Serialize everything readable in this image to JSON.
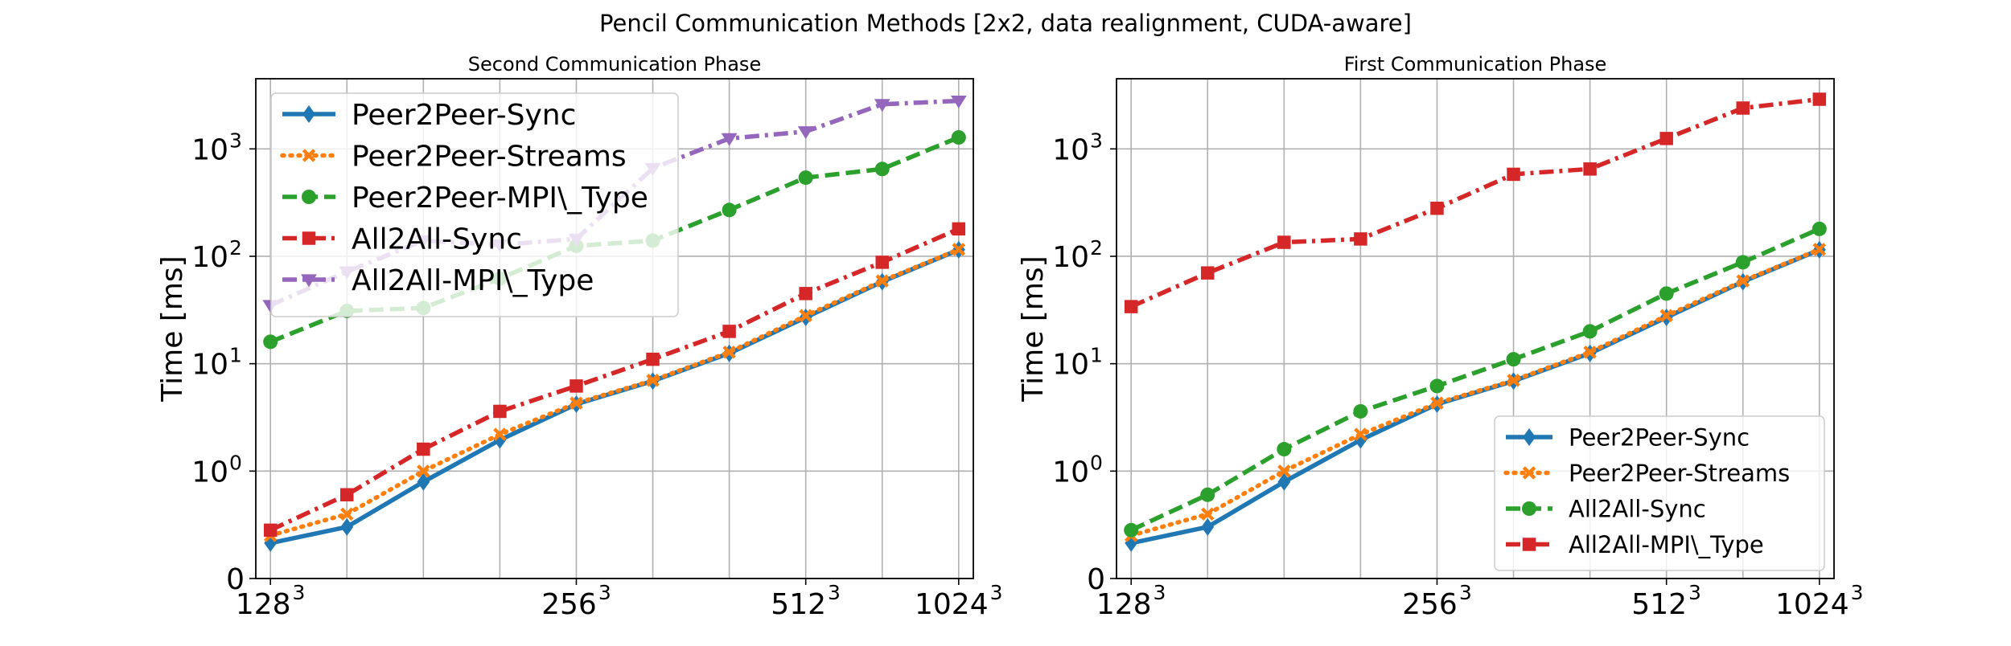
{
  "figure": {
    "title": "Pencil Communication Methods [2x2, data realignment, CUDA-aware]"
  },
  "chart_data": [
    {
      "type": "line",
      "title": "Second Communication Phase",
      "xlabel": "",
      "ylabel": "Time [ms]",
      "yscale": "symlog",
      "ylim": [
        0,
        4500
      ],
      "grid": true,
      "legend_position": "top-left",
      "x": [
        128,
        256,
        384,
        512,
        640,
        768,
        896,
        1024,
        1152,
        1280
      ],
      "x_tick_values": [
        128,
        640,
        1024,
        1280
      ],
      "x_tick_labels": [
        "128",
        "256",
        "512",
        "1024"
      ],
      "x_tick_exponent": "3",
      "y_ticks": [
        {
          "value": 0,
          "label": "0",
          "exp": ""
        },
        {
          "value": 1,
          "label": "10",
          "exp": "0"
        },
        {
          "value": 10,
          "label": "10",
          "exp": "1"
        },
        {
          "value": 100,
          "label": "10",
          "exp": "2"
        },
        {
          "value": 1000,
          "label": "10",
          "exp": "3"
        }
      ],
      "series": [
        {
          "name": "Peer2Peer-Sync",
          "color": "#1f77b4",
          "dash": "solid",
          "marker": "diamond",
          "values": [
            0.33,
            0.48,
            0.9,
            1.95,
            4.2,
            6.9,
            12.5,
            27,
            58,
            115
          ]
        },
        {
          "name": "Peer2Peer-Streams",
          "color": "#ff7f0e",
          "dash": "dotted",
          "marker": "x",
          "values": [
            0.4,
            0.6,
            1.0,
            2.2,
            4.3,
            7.0,
            12.8,
            28,
            59,
            116
          ]
        },
        {
          "name": "Peer2Peer-MPI\\_Type",
          "color": "#2ca02c",
          "dash": "dashed",
          "marker": "circle",
          "values": [
            16,
            31,
            33,
            62,
            125,
            140,
            270,
            540,
            650,
            1280
          ]
        },
        {
          "name": "All2All-Sync",
          "color": "#d62728",
          "dash": "dashdot",
          "marker": "square",
          "values": [
            0.45,
            0.78,
            1.6,
            3.6,
            6.2,
            11,
            20,
            45,
            88,
            180
          ]
        },
        {
          "name": "All2All-MPI\\_Type",
          "color": "#9467bd",
          "dash": "dashdot",
          "marker": "triangle",
          "values": [
            35,
            72,
            140,
            128,
            145,
            660,
            1250,
            1450,
            2600,
            2800
          ]
        }
      ]
    },
    {
      "type": "line",
      "title": "First Communication Phase",
      "xlabel": "",
      "ylabel": "Time [ms]",
      "yscale": "symlog",
      "ylim": [
        0,
        4500
      ],
      "grid": true,
      "legend_position": "bottom-right",
      "x": [
        128,
        256,
        384,
        512,
        640,
        768,
        896,
        1024,
        1152,
        1280
      ],
      "x_tick_values": [
        128,
        640,
        1024,
        1280
      ],
      "x_tick_labels": [
        "128",
        "256",
        "512",
        "1024"
      ],
      "x_tick_exponent": "3",
      "y_ticks": [
        {
          "value": 0,
          "label": "0",
          "exp": ""
        },
        {
          "value": 1,
          "label": "10",
          "exp": "0"
        },
        {
          "value": 10,
          "label": "10",
          "exp": "1"
        },
        {
          "value": 100,
          "label": "10",
          "exp": "2"
        },
        {
          "value": 1000,
          "label": "10",
          "exp": "3"
        }
      ],
      "series": [
        {
          "name": "Peer2Peer-Sync",
          "color": "#1f77b4",
          "dash": "solid",
          "marker": "diamond",
          "values": [
            0.33,
            0.48,
            0.9,
            1.95,
            4.2,
            6.9,
            12.5,
            27,
            58,
            115
          ]
        },
        {
          "name": "Peer2Peer-Streams",
          "color": "#ff7f0e",
          "dash": "dotted",
          "marker": "x",
          "values": [
            0.4,
            0.6,
            1.0,
            2.2,
            4.3,
            7.0,
            12.8,
            28,
            59,
            116
          ]
        },
        {
          "name": "All2All-Sync",
          "color": "#2ca02c",
          "dash": "dashed",
          "marker": "circle",
          "values": [
            0.45,
            0.78,
            1.6,
            3.6,
            6.2,
            11,
            20,
            45,
            88,
            180
          ]
        },
        {
          "name": "All2All-MPI\\_Type",
          "color": "#d62728",
          "dash": "dashdot",
          "marker": "square",
          "values": [
            34,
            70,
            135,
            145,
            280,
            580,
            650,
            1250,
            2400,
            2900
          ]
        }
      ]
    }
  ]
}
